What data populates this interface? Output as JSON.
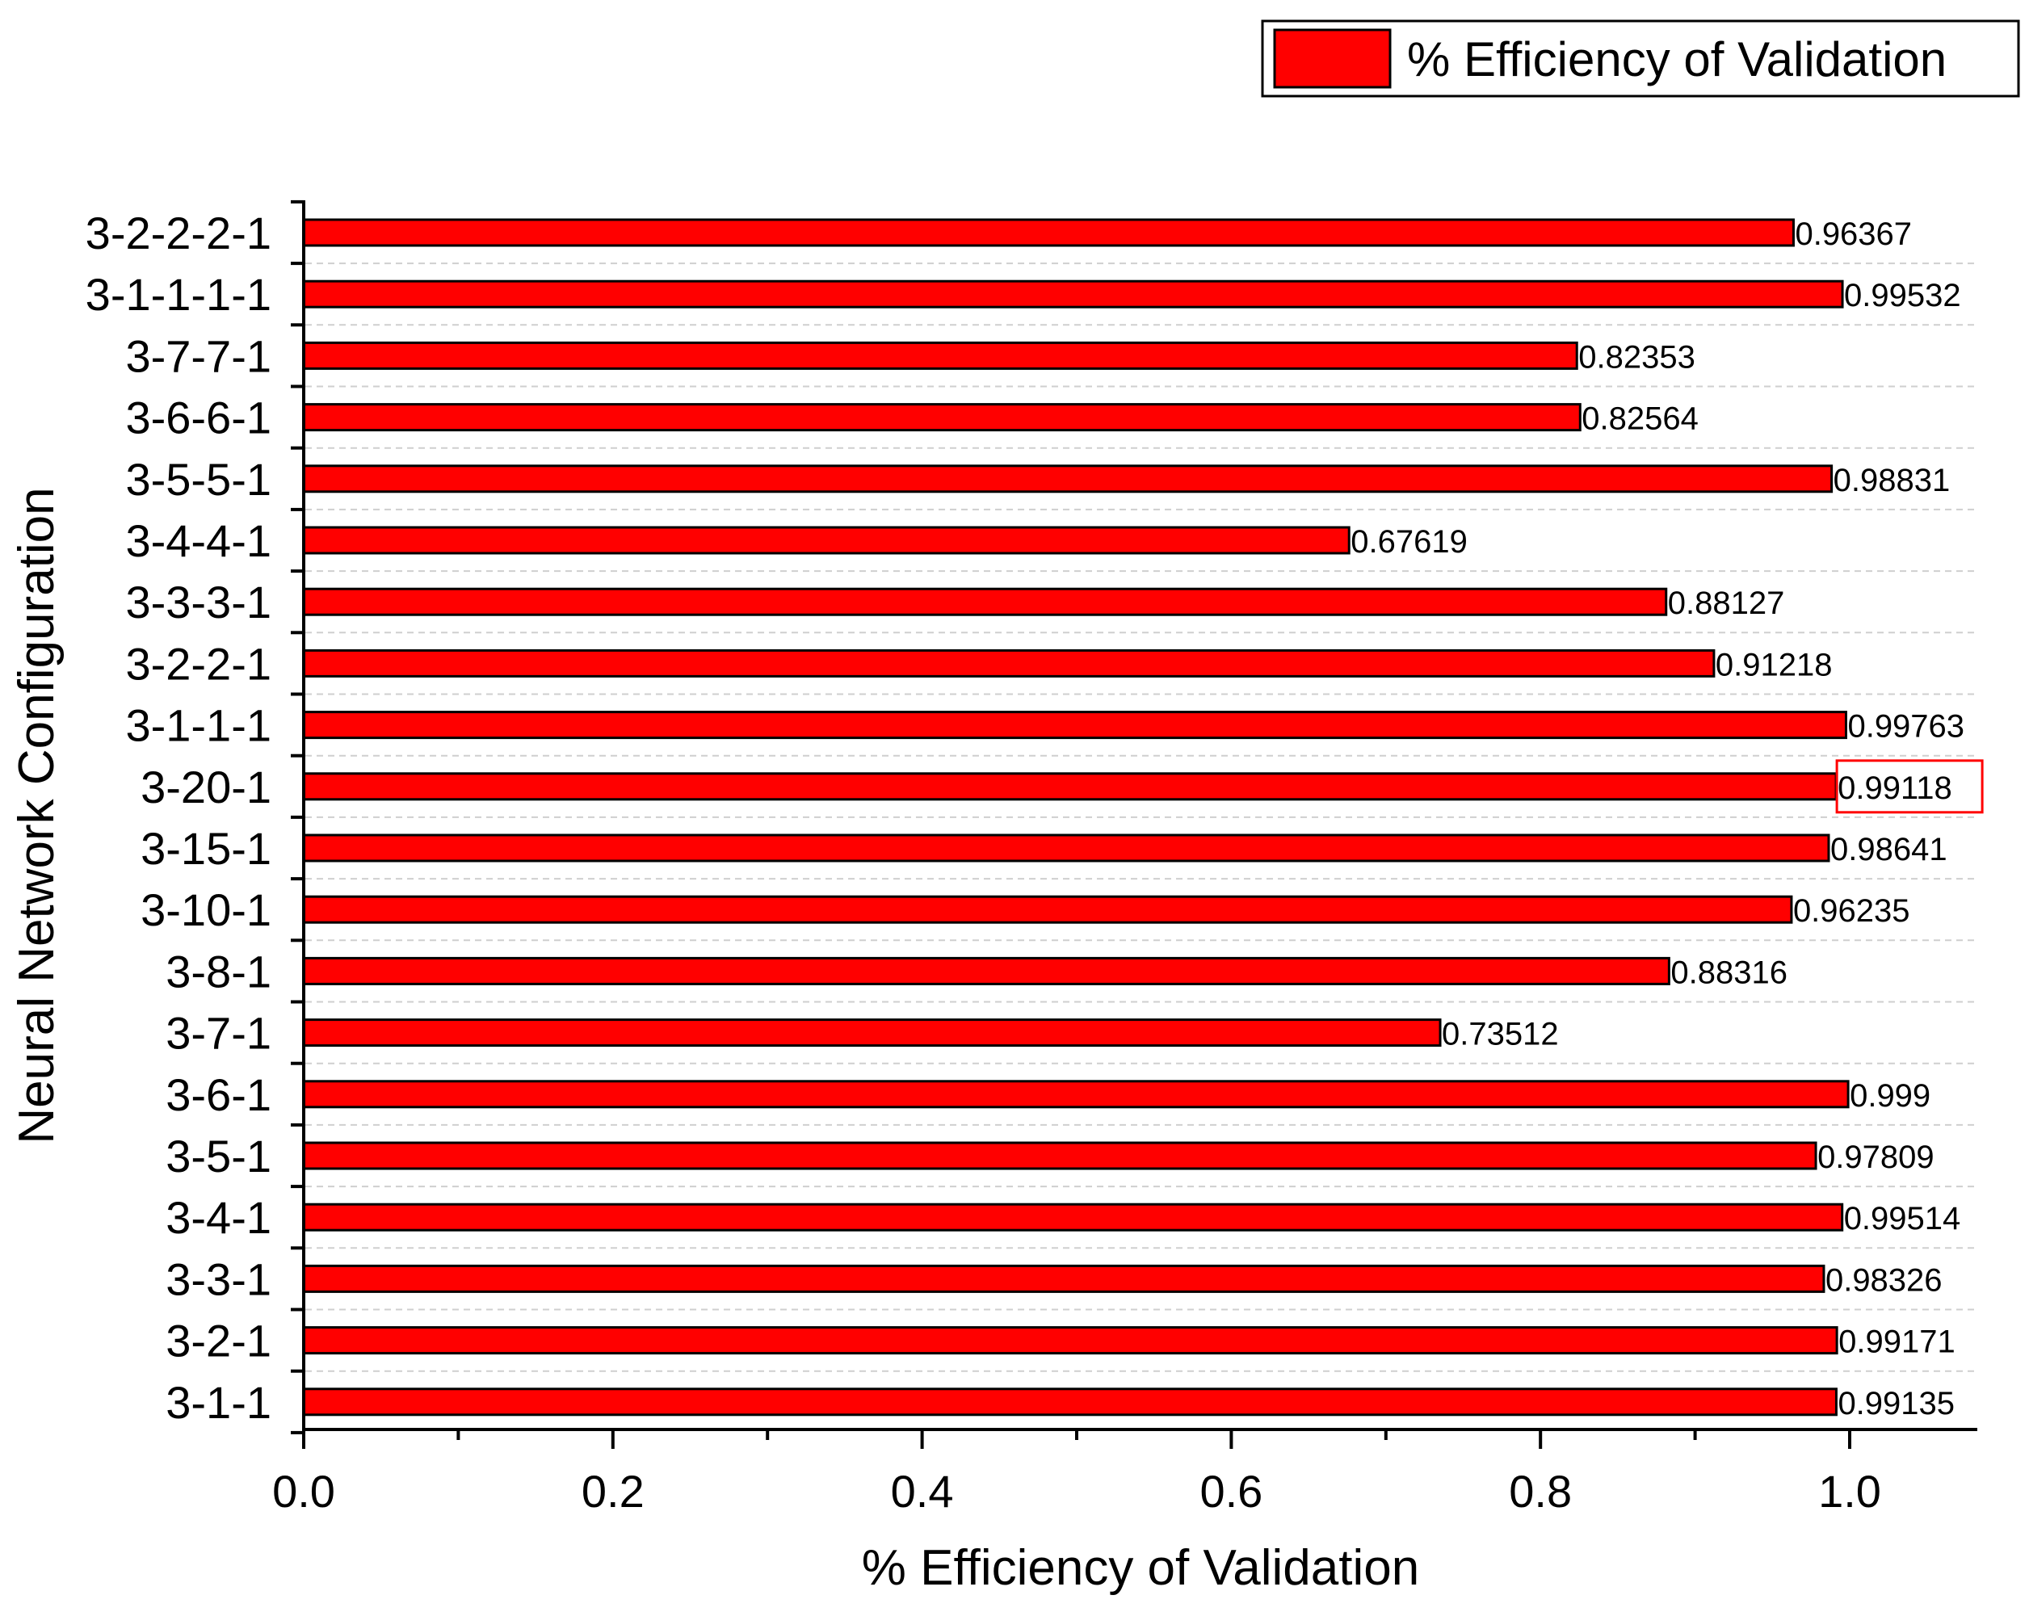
{
  "chart_data": {
    "type": "bar",
    "orientation": "horizontal",
    "xlabel": "% Efficiency of Validation",
    "ylabel": "Neural Network Configuration",
    "xlim": [
      0.0,
      1.08
    ],
    "x_ticks": [
      "0.0",
      "0.2",
      "0.4",
      "0.6",
      "0.8",
      "1.0"
    ],
    "x_tick_values": [
      0.0,
      0.2,
      0.4,
      0.6,
      0.8,
      1.0
    ],
    "grid": "horizontal dashed",
    "legend_position": "top-right",
    "highlighted_label": "3-20-1",
    "series": [
      {
        "name": "% Efficiency of Validation",
        "color": "#ff0000",
        "categories": [
          "3-2-2-2-1",
          "3-1-1-1-1",
          "3-7-7-1",
          "3-6-6-1",
          "3-5-5-1",
          "3-4-4-1",
          "3-3-3-1",
          "3-2-2-1",
          "3-1-1-1",
          "3-20-1",
          "3-15-1",
          "3-10-1",
          "3-8-1",
          "3-7-1",
          "3-6-1",
          "3-5-1",
          "3-4-1",
          "3-3-1",
          "3-2-1",
          "3-1-1"
        ],
        "values": [
          0.96367,
          0.99532,
          0.82353,
          0.82564,
          0.98831,
          0.67619,
          0.88127,
          0.91218,
          0.99763,
          0.99118,
          0.98641,
          0.96235,
          0.88316,
          0.73512,
          0.999,
          0.97809,
          0.99514,
          0.98326,
          0.99171,
          0.99135
        ],
        "value_labels": [
          "0.96367",
          "0.99532",
          "0.82353",
          "0.82564",
          "0.98831",
          "0.67619",
          "0.88127",
          "0.91218",
          "0.99763",
          "0.99118",
          "0.98641",
          "0.96235",
          "0.88316",
          "0.73512",
          "0.999",
          "0.97809",
          "0.99514",
          "0.98326",
          "0.99171",
          "0.99135"
        ]
      }
    ]
  }
}
